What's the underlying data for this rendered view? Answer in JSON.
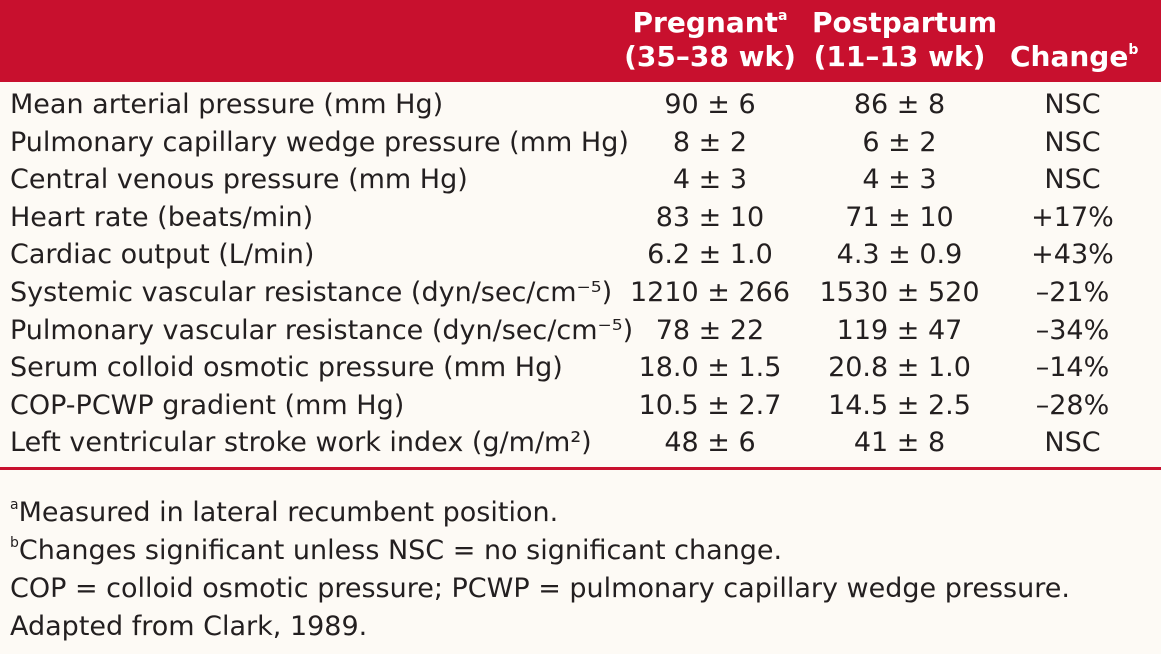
{
  "header": {
    "col_pregnant_line1": "Pregnant",
    "col_pregnant_mark": "a",
    "col_pregnant_line2": "(35–38 wk)",
    "col_postpartum_line1": "Postpartum",
    "col_postpartum_line2": "(11–13 wk)",
    "col_change": "Change",
    "col_change_mark": "b"
  },
  "rows": [
    {
      "label": "Mean arterial pressure (mm Hg)",
      "pregnant": "90 ± 6",
      "postpartum": "86 ± 8",
      "change": "NSC"
    },
    {
      "label": "Pulmonary capillary wedge pressure (mm Hg)",
      "pregnant": "8 ± 2",
      "postpartum": "6 ± 2",
      "change": "NSC"
    },
    {
      "label": "Central venous pressure (mm Hg)",
      "pregnant": "4 ± 3",
      "postpartum": "4 ± 3",
      "change": "NSC"
    },
    {
      "label": "Heart rate (beats/min)",
      "pregnant": "83 ± 10",
      "postpartum": "71 ± 10",
      "change": "+17%"
    },
    {
      "label": "Cardiac output (L/min)",
      "pregnant": "6.2 ± 1.0",
      "postpartum": "4.3 ± 0.9",
      "change": "+43%"
    },
    {
      "label": "Systemic vascular resistance (dyn/sec/cm⁻⁵)",
      "pregnant": "1210 ± 266",
      "postpartum": "1530 ± 520",
      "change": "–21%"
    },
    {
      "label": "Pulmonary vascular resistance (dyn/sec/cm⁻⁵)",
      "pregnant": "78 ± 22",
      "postpartum": "119 ± 47",
      "change": "–34%"
    },
    {
      "label": "Serum colloid osmotic pressure (mm Hg)",
      "pregnant": "18.0 ± 1.5",
      "postpartum": "20.8 ± 1.0",
      "change": "–14%"
    },
    {
      "label": "COP-PCWP gradient (mm Hg)",
      "pregnant": "10.5 ± 2.7",
      "postpartum": "14.5 ± 2.5",
      "change": "–28%"
    },
    {
      "label": "Left ventricular stroke work index (g/m/m²)",
      "pregnant": "48 ± 6",
      "postpartum": "41 ± 8",
      "change": "NSC"
    }
  ],
  "footnotes": {
    "a_mark": "a",
    "a_text": "Measured in lateral recumbent position.",
    "b_mark": "b",
    "b_text": "Changes significant unless NSC = no significant change.",
    "abbreviations": "COP = colloid osmotic pressure; PCWP = pulmonary capillary wedge pressure.",
    "source": "Adapted from Clark, 1989."
  },
  "colors": {
    "header_background": "#c8102e",
    "header_text": "#ffffff",
    "body_text": "#231f20",
    "page_background": "#fdfaf5"
  }
}
